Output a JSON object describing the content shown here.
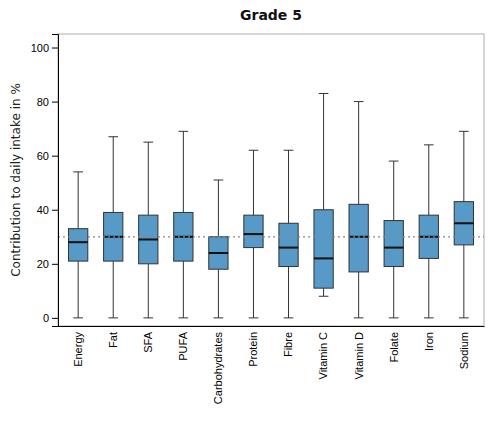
{
  "chart_data": {
    "type": "box",
    "title": "Grade 5",
    "ylabel": "Contribution to daily intake in %",
    "categories": [
      "Energy",
      "Fat",
      "SFA",
      "PUFA",
      "Carbohydrates",
      "Protein",
      "Fibre",
      "Vitamin C",
      "Vitamin D",
      "Folate",
      "Iron",
      "Sodium"
    ],
    "values": [
      {
        "whislo": 0,
        "q1": 21,
        "med": 28,
        "q3": 33,
        "whishi": 54
      },
      {
        "whislo": 0,
        "q1": 21,
        "med": 30,
        "q3": 39,
        "whishi": 67
      },
      {
        "whislo": 0,
        "q1": 20,
        "med": 29,
        "q3": 38,
        "whishi": 65
      },
      {
        "whislo": 0,
        "q1": 21,
        "med": 30,
        "q3": 39,
        "whishi": 69
      },
      {
        "whislo": 0,
        "q1": 18,
        "med": 24,
        "q3": 30,
        "whishi": 51
      },
      {
        "whislo": 0,
        "q1": 26,
        "med": 31,
        "q3": 38,
        "whishi": 62
      },
      {
        "whislo": 0,
        "q1": 19,
        "med": 26,
        "q3": 35,
        "whishi": 62
      },
      {
        "whislo": 8,
        "q1": 11,
        "med": 22,
        "q3": 40,
        "whishi": 83
      },
      {
        "whislo": 0,
        "q1": 17,
        "med": 30,
        "q3": 42,
        "whishi": 80
      },
      {
        "whislo": 0,
        "q1": 19,
        "med": 26,
        "q3": 36,
        "whishi": 58
      },
      {
        "whislo": 0,
        "q1": 22,
        "med": 30,
        "q3": 38,
        "whishi": 64
      },
      {
        "whislo": 0,
        "q1": 27,
        "med": 35,
        "q3": 43,
        "whishi": 69
      }
    ],
    "reference_line": 30,
    "ylim": [
      -3,
      105
    ],
    "yticks": [
      0,
      20,
      40,
      60,
      80,
      100
    ],
    "grid": false
  }
}
